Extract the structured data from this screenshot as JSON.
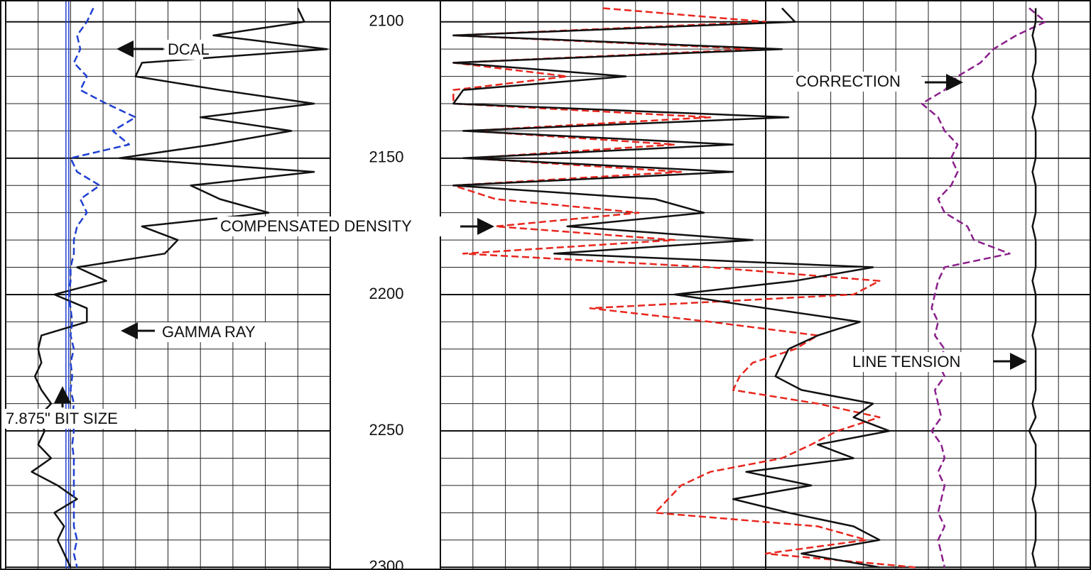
{
  "chart_data": {
    "type": "well_log",
    "ylim": [
      2092,
      2301
    ],
    "yticks": [
      2100,
      2150,
      2200,
      2250,
      2300
    ],
    "y_minor_step": 10,
    "tracks": [
      {
        "xlim": [
          0,
          10
        ]
      },
      {
        "xlim": [
          0,
          20
        ]
      }
    ],
    "bit_size": 1.9,
    "bit_size_color": "#1f3fd0",
    "depths": [
      2095,
      2100,
      2105,
      2110,
      2115,
      2120,
      2125,
      2130,
      2135,
      2140,
      2145,
      2150,
      2155,
      2160,
      2165,
      2170,
      2175,
      2180,
      2185,
      2190,
      2195,
      2200,
      2205,
      2210,
      2215,
      2220,
      2225,
      2230,
      2235,
      2240,
      2245,
      2250,
      2255,
      2260,
      2265,
      2270,
      2275,
      2280,
      2285,
      2290,
      2295,
      2300
    ],
    "series": [
      {
        "track": 0,
        "color": "#111111",
        "dash": false,
        "values": [
          9.0,
          9.2,
          6.4,
          9.9,
          4.2,
          4.0,
          6.6,
          9.5,
          6.0,
          8.8,
          6.4,
          3.5,
          9.5,
          5.7,
          6.6,
          8.1,
          4.2,
          5.3,
          4.9,
          2.2,
          3.1,
          1.5,
          2.5,
          2.5,
          1.1,
          1.0,
          1.1,
          0.9,
          1.1,
          1.4,
          1.0,
          1.2,
          1.0,
          1.4,
          0.8,
          1.6,
          2.2,
          1.5,
          1.8,
          1.6,
          1.8,
          2.0
        ]
      },
      {
        "track": 0,
        "color": "#1f3fd0",
        "dash": true,
        "values": [
          2.7,
          2.5,
          2.2,
          2.3,
          2.1,
          2.5,
          2.3,
          3.1,
          4.0,
          3.3,
          3.8,
          2.0,
          2.2,
          2.9,
          2.3,
          2.5,
          2.2,
          2.1,
          2.1,
          2.0,
          2.0,
          1.95,
          2.0,
          2.05,
          2.0,
          2.1,
          2.0,
          2.05,
          2.0,
          2.1,
          2.05,
          2.1,
          2.05,
          2.1,
          2.1,
          2.1,
          2.1,
          2.1,
          2.1,
          2.2,
          2.1,
          2.2
        ]
      },
      {
        "track": 1,
        "color": "#e8261e",
        "dash": true,
        "values": [
          5.0,
          10.0,
          0.4,
          9.8,
          0.4,
          3.9,
          0.4,
          0.4,
          8.3,
          0.9,
          7.2,
          0.9,
          7.4,
          0.4,
          1.7,
          6.1,
          1.7,
          7.2,
          0.7,
          8.3,
          13.5,
          12.7,
          4.6,
          8.3,
          11.6,
          10.9,
          9.6,
          9.2,
          9.0,
          11.6,
          13.5,
          12.2,
          11.4,
          10.5,
          8.3,
          7.4,
          7.0,
          6.6,
          11.6,
          13.1,
          10.0,
          14.6
        ]
      },
      {
        "track": 1,
        "color": "#111111",
        "dash": false,
        "values": [
          10.5,
          10.9,
          0.4,
          10.5,
          0.4,
          5.7,
          0.7,
          0.4,
          10.7,
          0.7,
          9.0,
          0.7,
          9.0,
          0.4,
          6.6,
          8.1,
          3.9,
          9.6,
          3.5,
          13.3,
          10.9,
          7.2,
          10.0,
          12.9,
          11.6,
          10.7,
          10.5,
          10.3,
          11.1,
          13.3,
          12.7,
          13.8,
          11.6,
          12.7,
          9.4,
          11.4,
          9.0,
          10.7,
          12.7,
          13.5,
          11.1,
          13.5
        ]
      },
      {
        "track": 1,
        "color": "#8b1f8b",
        "dash": true,
        "values": [
          18.1,
          18.6,
          17.7,
          17.0,
          16.6,
          15.9,
          15.5,
          14.8,
          15.3,
          15.5,
          15.9,
          15.7,
          15.9,
          15.7,
          15.3,
          15.5,
          16.2,
          16.4,
          17.5,
          15.5,
          15.3,
          15.2,
          15.1,
          15.3,
          15.2,
          15.5,
          15.3,
          15.5,
          15.2,
          15.3,
          15.4,
          15.1,
          15.4,
          15.5,
          15.3,
          15.5,
          15.4,
          15.3,
          15.5,
          15.3,
          15.4,
          15.5
        ]
      },
      {
        "track": 1,
        "color": "#111111",
        "dash": false,
        "values": [
          18.3,
          18.3,
          18.2,
          18.3,
          18.3,
          18.2,
          18.3,
          18.3,
          18.2,
          18.3,
          18.3,
          18.3,
          18.2,
          18.3,
          18.3,
          18.3,
          18.2,
          18.3,
          18.3,
          18.3,
          18.2,
          18.3,
          18.3,
          18.3,
          18.2,
          18.3,
          18.3,
          18.3,
          18.3,
          18.2,
          18.3,
          18.1,
          18.3,
          18.3,
          18.3,
          18.3,
          18.2,
          18.3,
          18.3,
          18.3,
          18.2,
          18.3
        ]
      }
    ],
    "annotations": [
      "DCAL",
      "CORRECTION",
      "COMPENSATED DENSITY",
      "GAMMA RAY",
      "LINE TENSION",
      "7.875\" BIT SIZE"
    ]
  }
}
